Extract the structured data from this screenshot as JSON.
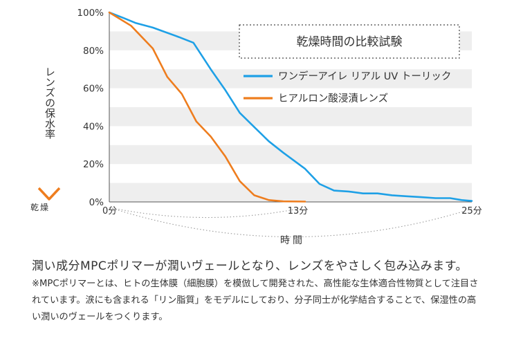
{
  "chart_data": {
    "type": "line",
    "title": "乾燥時間の比較試験",
    "ylabel": "レンズの保水率",
    "y_arrow_label": "乾燥",
    "xlabel": "時間",
    "ylim": [
      0,
      100
    ],
    "xlim": [
      0,
      25
    ],
    "y_ticks": [
      "0%",
      "20%",
      "40%",
      "60%",
      "80%",
      "100%"
    ],
    "x_ticks": [
      {
        "value": 0,
        "label": "0分"
      },
      {
        "value": 13,
        "label": "13分"
      },
      {
        "value": 25,
        "label": "25分"
      }
    ],
    "grid": "alternating horizontal bands",
    "legend": "top-right",
    "series": [
      {
        "name": "ワンデーアイレ リアル UV トーリック",
        "color": "#1ea0e6",
        "x": [
          0,
          1,
          1.8,
          3,
          4.8,
          5.8,
          7,
          8,
          9,
          10,
          11,
          12,
          13.5,
          14.5,
          15.5,
          16.5,
          17.5,
          18.5,
          19.5,
          20.5,
          21.5,
          22.5,
          23.5,
          24.3,
          25
        ],
        "y": [
          100,
          97,
          94.5,
          92,
          87,
          84,
          70,
          59,
          47,
          39.5,
          32,
          26,
          17.5,
          9.5,
          6,
          5.5,
          4.5,
          4.5,
          3.5,
          3,
          2.5,
          2,
          2,
          1,
          0.5
        ]
      },
      {
        "name": "ヒアルロン酸浸漬レンズ",
        "color": "#ee7d1e",
        "x": [
          0,
          1.5,
          3,
          4,
          5,
          6,
          7,
          8,
          9,
          10,
          11,
          12,
          13.5
        ],
        "y": [
          100,
          93,
          81,
          66,
          57,
          42.5,
          34.5,
          24,
          11,
          3.5,
          1,
          0.3,
          0.2
        ]
      }
    ]
  },
  "description": {
    "lead": "潤い成分MPCポリマーが潤いヴェールとなり、レンズをやさしく包み込みます。",
    "note": "※MPCポリマーとは、ヒトの生体膜（細胞膜）を模倣して開発された、高性能な生体適合性物質として注目されています。涙にも含まれる「リン脂質」をモデルにしており、分子同士が化学結合することで、保湿性の高い潤いのヴェールをつくります。"
  },
  "colors": {
    "arrow_top": "#1ea0e6",
    "arrow_bottom": "#ee7d1e",
    "band": "#eeeeee"
  }
}
